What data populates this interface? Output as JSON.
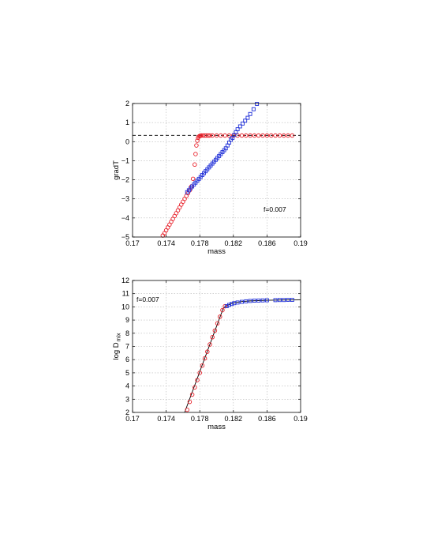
{
  "chart_data": [
    {
      "type": "scatter",
      "xlabel": "mass",
      "ylabel": "gradT",
      "xlim": [
        0.17,
        0.19
      ],
      "ylim": [
        -5,
        2
      ],
      "xticks": [
        "0.17",
        "0.174",
        "0.178",
        "0.182",
        "0.186",
        "0.19"
      ],
      "yticks": [
        "−5",
        "−4",
        "−3",
        "−2",
        "−1",
        "0",
        "1",
        "2"
      ],
      "grid": true,
      "annotation": "f=0.007",
      "reference_line": {
        "y": 0.33,
        "x_range": [
          0.17,
          0.19
        ],
        "style": "dashed",
        "color": "#000000"
      },
      "series": [
        {
          "marker": "circle",
          "color": "#e8202a",
          "x": [
            0.1736,
            0.1738,
            0.174,
            0.1742,
            0.1744,
            0.1746,
            0.1748,
            0.175,
            0.1752,
            0.1754,
            0.1756,
            0.1758,
            0.176,
            0.1762,
            0.1764,
            0.1766,
            0.1768,
            0.177,
            0.1772,
            0.1774,
            0.1775,
            0.1776,
            0.1777,
            0.1778,
            0.1779,
            0.178,
            0.1781,
            0.1782,
            0.1784,
            0.1786,
            0.1788,
            0.179,
            0.1792,
            0.1795,
            0.18,
            0.1805,
            0.181,
            0.1815,
            0.182,
            0.1825,
            0.183,
            0.1835,
            0.184,
            0.1845,
            0.185,
            0.1855,
            0.186,
            0.1865,
            0.187,
            0.1875,
            0.188,
            0.1885,
            0.189
          ],
          "y": [
            -4.92,
            -4.8,
            -4.65,
            -4.5,
            -4.35,
            -4.2,
            -4.05,
            -3.9,
            -3.75,
            -3.6,
            -3.45,
            -3.3,
            -3.15,
            -3.0,
            -2.85,
            -2.7,
            -2.55,
            -2.35,
            -1.95,
            -1.2,
            -0.65,
            -0.2,
            0.05,
            0.2,
            0.27,
            0.3,
            0.31,
            0.32,
            0.32,
            0.32,
            0.32,
            0.32,
            0.32,
            0.32,
            0.32,
            0.32,
            0.32,
            0.32,
            0.32,
            0.32,
            0.32,
            0.32,
            0.32,
            0.32,
            0.32,
            0.32,
            0.32,
            0.32,
            0.32,
            0.32,
            0.32,
            0.32,
            0.32
          ]
        },
        {
          "marker": "square",
          "color": "#1f2fd8",
          "x": [
            0.1765,
            0.1767,
            0.1769,
            0.1771,
            0.1773,
            0.1775,
            0.1777,
            0.1779,
            0.1781,
            0.1783,
            0.1785,
            0.1787,
            0.1789,
            0.1791,
            0.1793,
            0.1795,
            0.1797,
            0.1799,
            0.1801,
            0.1803,
            0.1805,
            0.1807,
            0.1809,
            0.1811,
            0.1813,
            0.1815,
            0.1817,
            0.1819,
            0.1821,
            0.1823,
            0.1825,
            0.1828,
            0.1831,
            0.1834,
            0.1837,
            0.184,
            0.1844,
            0.1848
          ],
          "y": [
            -2.65,
            -2.55,
            -2.45,
            -2.35,
            -2.25,
            -2.15,
            -2.05,
            -1.95,
            -1.85,
            -1.75,
            -1.65,
            -1.55,
            -1.45,
            -1.35,
            -1.25,
            -1.15,
            -1.05,
            -0.95,
            -0.85,
            -0.75,
            -0.65,
            -0.55,
            -0.45,
            -0.35,
            -0.2,
            -0.05,
            0.1,
            0.2,
            0.35,
            0.5,
            0.65,
            0.8,
            0.95,
            1.1,
            1.25,
            1.45,
            1.7,
            1.98
          ]
        }
      ]
    },
    {
      "type": "line",
      "xlabel": "mass",
      "ylabel_main": "log D",
      "ylabel_sub": "mix",
      "xlim": [
        0.17,
        0.19
      ],
      "ylim": [
        2,
        12
      ],
      "xticks": [
        "0.17",
        "0.174",
        "0.178",
        "0.182",
        "0.186",
        "0.19"
      ],
      "yticks": [
        "2",
        "3",
        "4",
        "5",
        "6",
        "7",
        "8",
        "9",
        "10",
        "11",
        "12"
      ],
      "grid": true,
      "annotation": "f=0.007",
      "line": {
        "color": "#000000",
        "x": [
          0.1762,
          0.1808,
          0.1812,
          0.182,
          0.183,
          0.184,
          0.186,
          0.188,
          0.19
        ],
        "y": [
          2.0,
          9.9,
          10.1,
          10.3,
          10.4,
          10.45,
          10.5,
          10.52,
          10.53
        ]
      },
      "series": [
        {
          "marker": "circle",
          "color": "#e8202a",
          "x": [
            0.1765,
            0.1768,
            0.1771,
            0.1774,
            0.1777,
            0.178,
            0.1783,
            0.1786,
            0.1789,
            0.1792,
            0.1795,
            0.1798,
            0.1801,
            0.1804,
            0.1807,
            0.181
          ],
          "y": [
            2.2,
            2.8,
            3.35,
            3.9,
            4.45,
            5.0,
            5.55,
            6.1,
            6.6,
            7.15,
            7.7,
            8.2,
            8.75,
            9.25,
            9.75,
            10.05
          ]
        },
        {
          "marker": "square",
          "color": "#1f2fd8",
          "x": [
            0.1812,
            0.1815,
            0.1818,
            0.1821,
            0.1825,
            0.183,
            0.1835,
            0.184,
            0.1845,
            0.185,
            0.1855,
            0.186,
            0.187,
            0.1875,
            0.188,
            0.1885,
            0.189
          ],
          "y": [
            10.05,
            10.15,
            10.22,
            10.28,
            10.33,
            10.38,
            10.42,
            10.45,
            10.47,
            10.48,
            10.49,
            10.5,
            10.51,
            10.52,
            10.52,
            10.53,
            10.53
          ]
        }
      ]
    }
  ]
}
